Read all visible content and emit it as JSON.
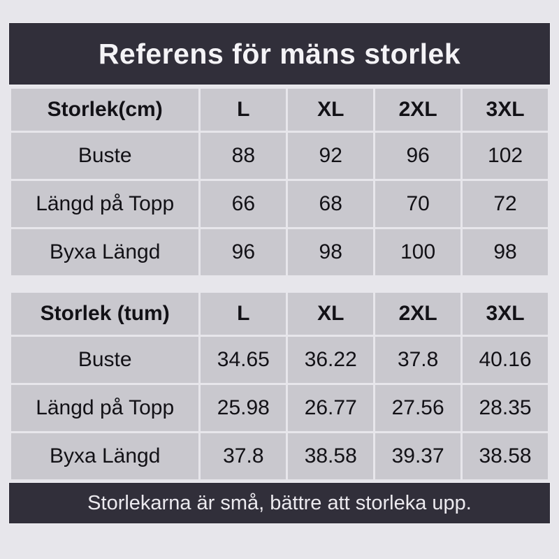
{
  "page": {
    "title": "Referens för mäns storlek",
    "footer_note": "Storlekarna är små, bättre att storleka upp."
  },
  "colors": {
    "page_bg": "#e7e6eb",
    "bar_bg": "#312f3a",
    "bar_text": "#f4f3f6",
    "cell_bg": "#c9c8ce",
    "cell_text": "#121116",
    "grid_gap": "#e7e6eb"
  },
  "chart_data": [
    {
      "type": "table",
      "title": "Referens för mäns storlek",
      "unit": "cm",
      "columns": [
        "Storlek(cm)",
        "L",
        "XL",
        "2XL",
        "3XL"
      ],
      "rows": [
        [
          "Buste",
          "88",
          "92",
          "96",
          "102"
        ],
        [
          "Längd på Topp",
          "66",
          "68",
          "70",
          "72"
        ],
        [
          "Byxa Längd",
          "96",
          "98",
          "100",
          "98"
        ]
      ]
    },
    {
      "type": "table",
      "unit": "tum",
      "columns": [
        "Storlek (tum)",
        "L",
        "XL",
        "2XL",
        "3XL"
      ],
      "rows": [
        [
          "Buste",
          "34.65",
          "36.22",
          "37.8",
          "40.16"
        ],
        [
          "Längd på Topp",
          "25.98",
          "26.77",
          "27.56",
          "28.35"
        ],
        [
          "Byxa Längd",
          "37.8",
          "38.58",
          "39.37",
          "38.58"
        ]
      ]
    }
  ]
}
